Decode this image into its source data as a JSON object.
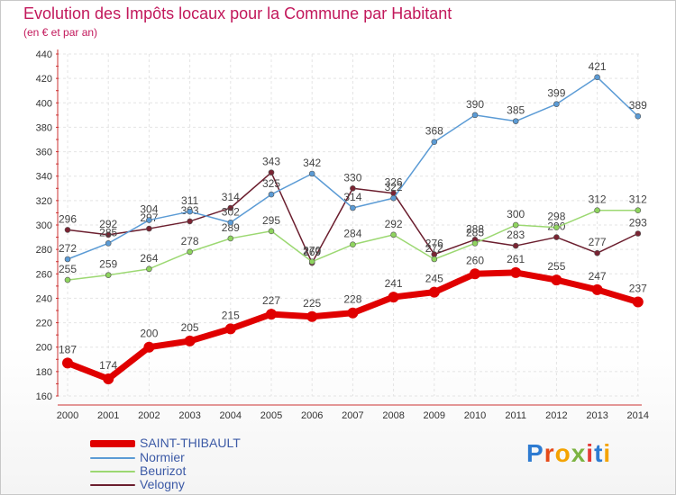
{
  "title": "Evolution des Impôts locaux pour la Commune par Habitant",
  "subtitle": "(en € et par an)",
  "brand": "Proxiti",
  "chart_data": {
    "type": "line",
    "categories": [
      "2000",
      "2001",
      "2002",
      "2003",
      "2004",
      "2005",
      "2006",
      "2007",
      "2008",
      "2009",
      "2010",
      "2011",
      "2012",
      "2013",
      "2014"
    ],
    "ylim": [
      160,
      440
    ],
    "ystep": 20,
    "grid": true,
    "legend_position": "bottom-left",
    "series": [
      {
        "name": "Velogny",
        "color": "#6b1e2e",
        "marker": "#7a2433",
        "width": 1.5,
        "values": [
          296,
          292,
          297,
          303,
          314,
          343,
          269,
          330,
          326,
          276,
          288,
          283,
          290,
          277,
          293
        ]
      },
      {
        "name": "Beurizot",
        "color": "#9cd872",
        "marker": "#8fd45f",
        "width": 1.5,
        "values": [
          255,
          259,
          264,
          278,
          289,
          295,
          270,
          284,
          292,
          272,
          285,
          300,
          298,
          312,
          312
        ]
      },
      {
        "name": "Normier",
        "color": "#5b9bd5",
        "marker": "#5b9bd5",
        "width": 1.5,
        "values": [
          272,
          285,
          304,
          311,
          302,
          325,
          342,
          314,
          322,
          368,
          390,
          385,
          399,
          421,
          389
        ]
      },
      {
        "name": "SAINT-THIBAULT",
        "color": "#e00000",
        "marker": "#e00000",
        "width": 7,
        "values": [
          187,
          174,
          200,
          205,
          215,
          227,
          225,
          228,
          241,
          245,
          260,
          261,
          255,
          247,
          237
        ]
      }
    ]
  },
  "legend": [
    {
      "label": "SAINT-THIBAULT",
      "color": "#e00000"
    },
    {
      "label": "Normier",
      "color": "#5b9bd5"
    },
    {
      "label": "Beurizot",
      "color": "#9cd872"
    },
    {
      "label": "Velogny",
      "color": "#6b1e2e"
    }
  ]
}
